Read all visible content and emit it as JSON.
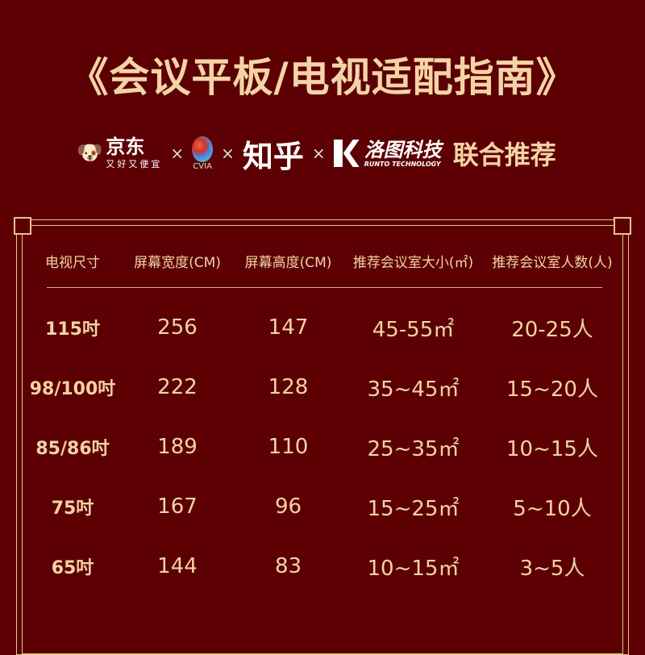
{
  "title": "《会议平板/电视适配指南》",
  "partners": {
    "jd": "京东",
    "jd_slogan": "又好又便宜",
    "x": "×",
    "cvia": "CVIA",
    "zhihu": "知乎",
    "runto": "洛图科技",
    "runto_en": "RUNTO TECHNOLOGY",
    "recommend": "联合推荐"
  },
  "table": {
    "headers": [
      "电视尺寸",
      "屏幕宽度(CM)",
      "屏幕高度(CM)",
      "推荐会议室大小(㎡)",
      "推荐会议室人数(人)"
    ],
    "rows": [
      [
        "115吋",
        "256",
        "147",
        "45-55㎡",
        "20-25人"
      ],
      [
        "98/100吋",
        "222",
        "128",
        "35~45㎡",
        "15~20人"
      ],
      [
        "85/86吋",
        "189",
        "110",
        "25~35㎡",
        "10~15人"
      ],
      [
        "75吋",
        "167",
        "96",
        "15~25㎡",
        "5~10人"
      ],
      [
        "65吋",
        "144",
        "83",
        "10~15㎡",
        "3~5人"
      ]
    ]
  },
  "colors": {
    "background": "#5c0004",
    "gold": "#f3d3a4"
  }
}
